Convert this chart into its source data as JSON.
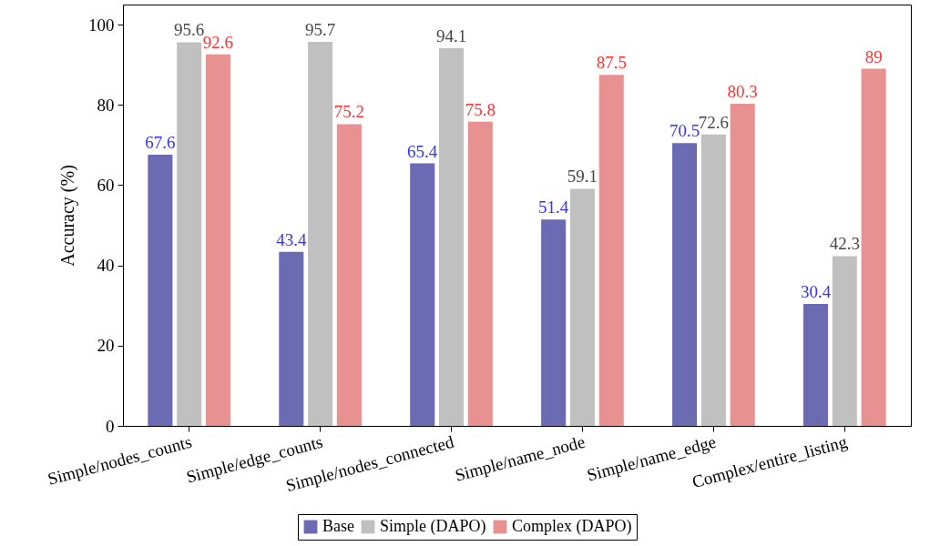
{
  "chart_data": {
    "type": "bar",
    "ylabel": "Accuracy (%)",
    "categories": [
      "Simple/nodes_counts",
      "Simple/edge_counts",
      "Simple/nodes_connected",
      "Simple/name_node",
      "Simple/name_edge",
      "Complex/entire_listing"
    ],
    "series": [
      {
        "name": "Base",
        "color": "#6b6bb3",
        "values": [
          67.6,
          43.4,
          65.4,
          51.4,
          70.5,
          30.4
        ]
      },
      {
        "name": "Simple (DAPO)",
        "color": "#c0c0c0",
        "values": [
          95.6,
          95.7,
          94.1,
          59.1,
          72.6,
          42.3
        ]
      },
      {
        "name": "Complex (DAPO)",
        "color": "#e89191",
        "values": [
          92.6,
          75.2,
          75.8,
          87.5,
          80.3,
          89
        ]
      }
    ],
    "ylim": [
      0,
      105
    ],
    "yticks": [
      0,
      20,
      40,
      60,
      80,
      100
    ],
    "grid": false,
    "legend": "bottom",
    "data_labels": true
  }
}
